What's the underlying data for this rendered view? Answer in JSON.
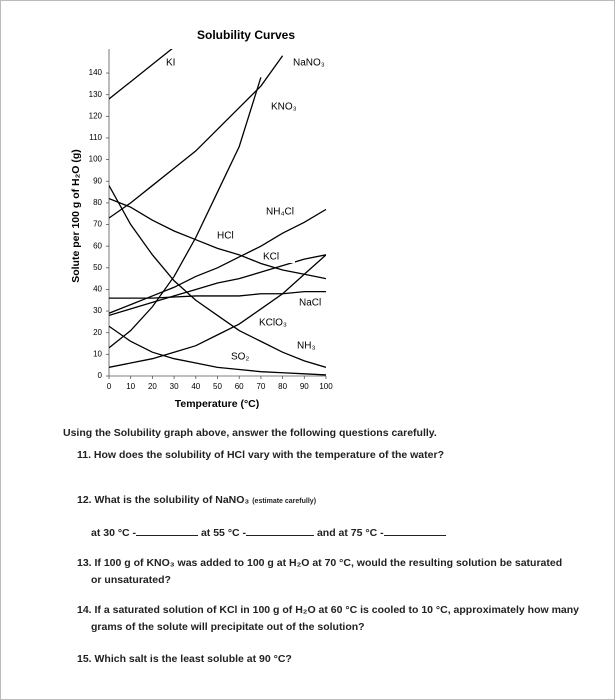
{
  "chart_data": {
    "type": "line",
    "title": "Solubility Curves",
    "x_label": "Temperature (°C)",
    "y_label": "Solute per 100 g of H₂O (g)",
    "x": [
      0,
      10,
      20,
      30,
      40,
      50,
      60,
      70,
      80,
      90,
      100
    ],
    "xlim": [
      0,
      100
    ],
    "xticks": [
      0,
      10,
      20,
      30,
      40,
      50,
      60,
      70,
      80,
      90,
      100
    ],
    "ylim": [
      0,
      150
    ],
    "yticks": [
      0,
      10,
      20,
      30,
      40,
      50,
      60,
      70,
      80,
      90,
      100,
      110,
      120,
      130,
      140
    ],
    "series": [
      {
        "name": "KI",
        "color": "#000000",
        "values": [
          128,
          136,
          144,
          152,
          null,
          null,
          null,
          null,
          null,
          null,
          null
        ]
      },
      {
        "name": "NaNO₃",
        "color": "#000000",
        "values": [
          73,
          80,
          88,
          96,
          104,
          114,
          124,
          134,
          148,
          null,
          null
        ]
      },
      {
        "name": "KNO₃",
        "color": "#000000",
        "values": [
          13,
          21,
          32,
          46,
          64,
          85,
          106,
          138,
          null,
          null,
          null
        ]
      },
      {
        "name": "NH₄Cl",
        "color": "#000000",
        "values": [
          29,
          33,
          37,
          41,
          46,
          50,
          55,
          60,
          66,
          71,
          77
        ]
      },
      {
        "name": "HCl",
        "color": "#000000",
        "values": [
          82,
          78,
          72,
          67,
          63,
          59,
          56,
          52,
          49,
          47,
          45
        ]
      },
      {
        "name": "KCl",
        "color": "#000000",
        "values": [
          28,
          31,
          34,
          37,
          40,
          43,
          45,
          48,
          51,
          54,
          56
        ]
      },
      {
        "name": "NaCl",
        "color": "#000000",
        "values": [
          36,
          36,
          36,
          36.5,
          37,
          37,
          37,
          38,
          38,
          39,
          39
        ]
      },
      {
        "name": "KClO₃",
        "color": "#000000",
        "values": [
          4,
          6,
          8,
          11,
          14,
          19,
          24,
          31,
          38,
          47,
          56
        ]
      },
      {
        "name": "NH₃",
        "color": "#000000",
        "values": [
          88,
          70,
          56,
          44,
          35,
          28,
          21,
          16,
          11,
          7,
          4
        ]
      },
      {
        "name": "SO₂",
        "color": "#000000",
        "values": [
          23,
          16,
          11,
          8,
          6,
          4,
          3,
          2,
          1.5,
          1,
          0.5
        ]
      }
    ]
  },
  "questions": {
    "intro": "Using the Solubility graph above, answer the following questions carefully.",
    "q11": "11. How does the solubility of HCl vary with the temperature of the water?",
    "q12": "12. What is the solubility of NaNO₃",
    "q12_note": "(estimate carefully)",
    "q12_a": "at 30 °C -",
    "q12_b": "at 55 °C -",
    "q12_c": "and at 75 °C -",
    "q13": "13. If 100 g of KNO₃ was added to 100 g at H₂O at 70 °C, would the resulting solution be saturated or unsaturated?",
    "q14": "14. If a saturated solution of KCl in 100 g of H₂O at 60 °C is cooled to 10 °C, approximately how many grams of the solute will precipitate out of the solution?",
    "q15": "15. Which salt is the least soluble at 90 °C?"
  }
}
